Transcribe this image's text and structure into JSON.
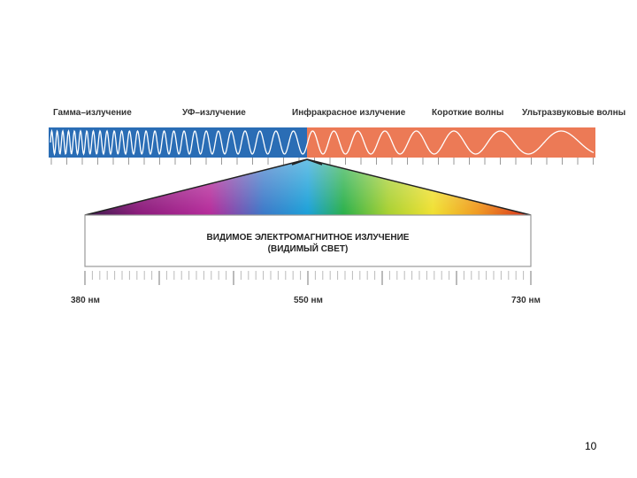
{
  "bands": [
    {
      "label": "Гамма–излучение"
    },
    {
      "label": "УФ–излучение"
    },
    {
      "label": "Инфракрасное излучение"
    },
    {
      "label": "Короткие волны"
    },
    {
      "label": "Ультразвуковые волны"
    }
  ],
  "visible": {
    "title_line1": "ВИДИМОЕ ЭЛЕКТРОМАГНИТНОЕ ИЗЛУЧЕНИЕ",
    "title_line2": "(ВИДИМЫЙ СВЕТ)"
  },
  "scale": {
    "left": "380 нм",
    "center": "550 нм",
    "right": "730 нм"
  },
  "colors": {
    "bar_blue": "#2a6db5",
    "bar_orange": "#ec7a56",
    "wave": "#ffffff"
  },
  "page_number": "10"
}
